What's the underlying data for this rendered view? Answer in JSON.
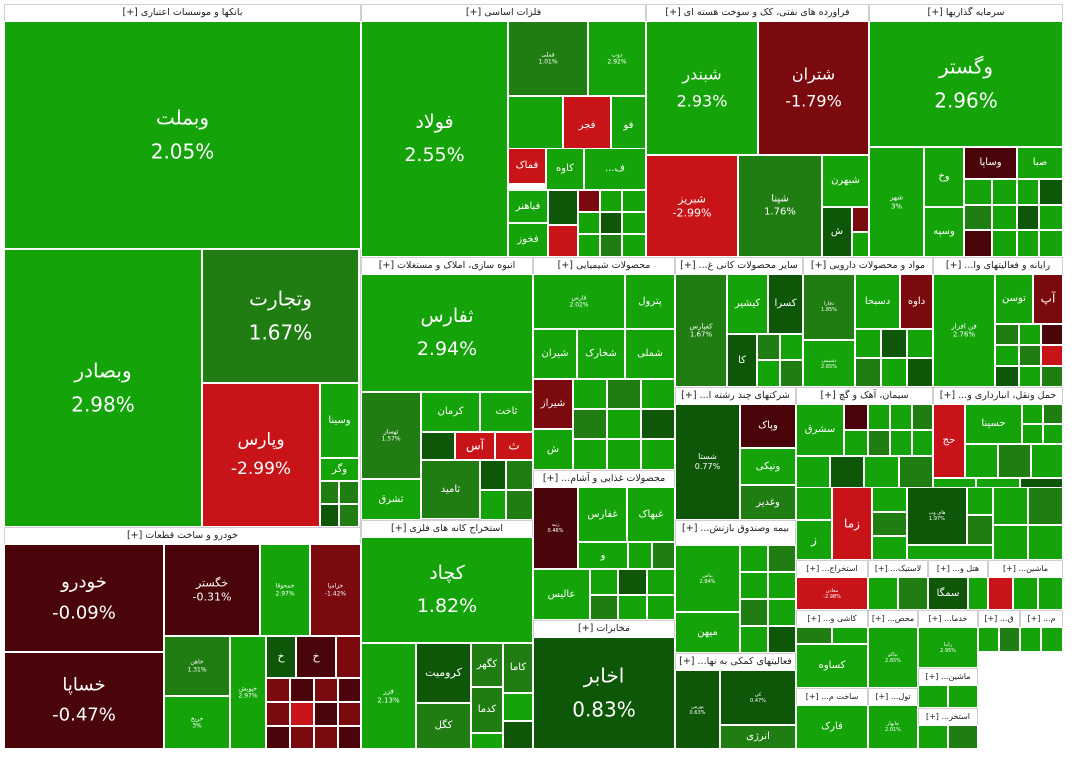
{
  "chart_data": {
    "type": "treemap",
    "title": "",
    "colors": {
      "strong_up": "#14a40a",
      "up": "#1f7d12",
      "flat_up": "#0e5708",
      "strong_down": "#c81418",
      "down": "#7a0a0e",
      "flat_down": "#4a050a",
      "frame": "#ffffff"
    },
    "sectors": [
      {
        "name": "بانکها و موسسات اعتباری [+]",
        "stocks": [
          {
            "name": "وبملت",
            "pct": "2.05%"
          },
          {
            "name": "وبصادر",
            "pct": "2.98%"
          },
          {
            "name": "وتجارت",
            "pct": "1.67%"
          },
          {
            "name": "وپارس",
            "pct": "-2.99%"
          },
          {
            "name": "وسینا",
            "pct": ""
          },
          {
            "name": "وگر",
            "pct": ""
          }
        ]
      },
      {
        "name": "فلزات اساسی [+]",
        "stocks": [
          {
            "name": "فولاد",
            "pct": "2.55%"
          },
          {
            "name": "فملی",
            "pct": "1.01%"
          },
          {
            "name": "ذوب",
            "pct": "2.92%"
          },
          {
            "name": "فجر",
            "pct": ""
          },
          {
            "name": "فو",
            "pct": ""
          },
          {
            "name": "فماک",
            "pct": ""
          },
          {
            "name": "کاوه",
            "pct": ""
          },
          {
            "name": "ف...",
            "pct": ""
          },
          {
            "name": "فباهنر",
            "pct": ""
          },
          {
            "name": "فخوز",
            "pct": ""
          }
        ]
      },
      {
        "name": "فراورده های نفتی، کک و سوخت هسته ای [+]",
        "stocks": [
          {
            "name": "شبندر",
            "pct": "2.93%"
          },
          {
            "name": "شتران",
            "pct": "-1.79%"
          },
          {
            "name": "شبریز",
            "pct": "-2.99%"
          },
          {
            "name": "شپنا",
            "pct": "1.76%"
          },
          {
            "name": "شبهرن",
            "pct": ""
          },
          {
            "name": "ش",
            "pct": ""
          }
        ]
      },
      {
        "name": "سرمایه گذاریها [+]",
        "stocks": [
          {
            "name": "وگستر",
            "pct": "2.96%"
          },
          {
            "name": "وساپا",
            "pct": ""
          },
          {
            "name": "صبا",
            "pct": ""
          },
          {
            "name": "وخ",
            "pct": ""
          },
          {
            "name": "وسپه",
            "pct": ""
          },
          {
            "name": "شهر",
            "pct": "3%"
          }
        ]
      },
      {
        "name": "انبوه سازی، املاک و مستغلات [+]",
        "stocks": [
          {
            "name": "ثفارس",
            "pct": "2.94%"
          },
          {
            "name": "ثهساز",
            "pct": "1.57%"
          },
          {
            "name": "کرمان",
            "pct": ""
          },
          {
            "name": "ثاخت",
            "pct": ""
          },
          {
            "name": "ثامید",
            "pct": ""
          },
          {
            "name": "ثشرق",
            "pct": ""
          },
          {
            "name": "آس",
            "pct": ""
          },
          {
            "name": "ث",
            "pct": ""
          }
        ]
      },
      {
        "name": "محصولات شیمیایی [+]",
        "stocks": [
          {
            "name": "پترول",
            "pct": ""
          },
          {
            "name": "فارس",
            "pct": "2.02%"
          },
          {
            "name": "شیران",
            "pct": ""
          },
          {
            "name": "شخارک",
            "pct": ""
          },
          {
            "name": "شملی",
            "pct": ""
          },
          {
            "name": "شیراز",
            "pct": ""
          },
          {
            "name": "ش",
            "pct": ""
          }
        ]
      },
      {
        "name": "سایر محصولات کانی غ... [+]",
        "stocks": [
          {
            "name": "کفپارس",
            "pct": "1.67%"
          },
          {
            "name": "کسرا",
            "pct": ""
          },
          {
            "name": "کیشیر",
            "pct": ""
          },
          {
            "name": "کا",
            "pct": ""
          }
        ]
      },
      {
        "name": "مواد و محصولات دارویی [+]",
        "stocks": [
          {
            "name": "داوه",
            "pct": ""
          },
          {
            "name": "دسبحا",
            "pct": ""
          },
          {
            "name": "دفارا",
            "pct": "1.85%"
          },
          {
            "name": "دشیمی",
            "pct": "2.65%"
          }
        ]
      },
      {
        "name": "رایانه و فعالیتهای وا... [+]",
        "stocks": [
          {
            "name": "آپ",
            "pct": ""
          },
          {
            "name": "توسن",
            "pct": ""
          },
          {
            "name": "فن افزار",
            "pct": "2.76%"
          }
        ]
      },
      {
        "name": "شرکتهای چند رشته ا... [+]",
        "stocks": [
          {
            "name": "شستا",
            "pct": "0.77%"
          },
          {
            "name": "وپاک",
            "pct": ""
          },
          {
            "name": "ونیکی",
            "pct": ""
          },
          {
            "name": "وغدیر",
            "pct": ""
          }
        ]
      },
      {
        "name": "سیمان، آهک و گچ [+]",
        "stocks": [
          {
            "name": "سشرق",
            "pct": ""
          }
        ]
      },
      {
        "name": "حمل ونقل، انبارداری و... [+]",
        "stocks": [
          {
            "name": "حسینا",
            "pct": ""
          },
          {
            "name": "حج",
            "pct": ""
          }
        ]
      },
      {
        "name": "خودرو و ساخت قطعات [+]",
        "stocks": [
          {
            "name": "خودرو",
            "pct": "-0.09%"
          },
          {
            "name": "خساپا",
            "pct": "-0.47%"
          },
          {
            "name": "خگستر",
            "pct": "-0.31%"
          },
          {
            "name": "خمحوقا",
            "pct": "2.97%"
          },
          {
            "name": "خزامیا",
            "pct": "-1.42%"
          },
          {
            "name": "خاهن",
            "pct": "1.31%"
          },
          {
            "name": "خپویش",
            "pct": "2.97%"
          },
          {
            "name": "خریخ",
            "pct": "3%"
          },
          {
            "name": "خ",
            "pct": ""
          },
          {
            "name": "خ",
            "pct": ""
          }
        ]
      },
      {
        "name": "استخراج کانه های فلزی [+]",
        "stocks": [
          {
            "name": "کچاد",
            "pct": "1.82%"
          },
          {
            "name": "فزر",
            "pct": "2.13%"
          },
          {
            "name": "کرومیت",
            "pct": ""
          },
          {
            "name": "کگهر",
            "pct": ""
          },
          {
            "name": "کاما",
            "pct": ""
          },
          {
            "name": "کدما",
            "pct": ""
          },
          {
            "name": "کگل",
            "pct": ""
          }
        ]
      },
      {
        "name": "محصولات غذایی و آشام... [+]",
        "stocks": [
          {
            "name": "غفارس",
            "pct": ""
          },
          {
            "name": "غبهاک",
            "pct": ""
          },
          {
            "name": "زنیه",
            "pct": "0.46%"
          },
          {
            "name": "و",
            "pct": ""
          },
          {
            "name": "عالیس",
            "pct": ""
          }
        ]
      },
      {
        "name": "مخابرات [+]",
        "stocks": [
          {
            "name": "اخابر",
            "pct": "0.83%"
          }
        ]
      },
      {
        "name": "بیمه وصندوق بازنش... [+]",
        "stocks": [
          {
            "name": "بپاس",
            "pct": "2.84%"
          },
          {
            "name": "میهن",
            "pct": ""
          }
        ]
      },
      {
        "name": "فعالیتهای کمکی به نها... [+]",
        "stocks": [
          {
            "name": "بورس",
            "pct": "0.63%"
          },
          {
            "name": "کی",
            "pct": "0.47%"
          },
          {
            "name": "انرژی",
            "pct": ""
          }
        ]
      },
      {
        "name": "زراعت و خدمات وا... [+]",
        "stocks": [
          {
            "name": "زما",
            "pct": ""
          },
          {
            "name": "ز",
            "pct": ""
          }
        ]
      },
      {
        "name": "اطلاعات و ا... [+]",
        "stocks": [
          {
            "name": "های وب",
            "pct": "1.97%"
          }
        ]
      },
      {
        "name": "عرضه بر... [+]",
        "stocks": []
      },
      {
        "name": "استخراج... [+]",
        "stocks": [
          {
            "name": "معادن",
            "pct": "-2.98%"
          }
        ]
      },
      {
        "name": "لاستیک... [+]",
        "stocks": []
      },
      {
        "name": "هتل و... [+]",
        "stocks": [
          {
            "name": "سمگا",
            "pct": ""
          }
        ]
      },
      {
        "name": "ماشین... [+]",
        "stocks": []
      },
      {
        "name": "کاشی و... [+]",
        "stocks": [
          {
            "name": "کساوه",
            "pct": ""
          }
        ]
      },
      {
        "name": "محص... [+]",
        "stocks": [
          {
            "name": "بپاکو",
            "pct": "2.65%"
          }
        ]
      },
      {
        "name": "خدما... [+]",
        "stocks": [
          {
            "name": "رانبا",
            "pct": "2.95%"
          }
        ]
      },
      {
        "name": "ق... [+]",
        "stocks": []
      },
      {
        "name": "ساخت م... [+]",
        "stocks": [
          {
            "name": "فارک",
            "pct": ""
          }
        ]
      },
      {
        "name": "تول... [+]",
        "stocks": [
          {
            "name": "چابهار",
            "pct": "2.01%"
          }
        ]
      },
      {
        "name": "ماشین... [+]",
        "stocks": []
      },
      {
        "name": "استخر... [+]",
        "stocks": []
      },
      {
        "name": "م... [+]",
        "stocks": []
      }
    ]
  }
}
